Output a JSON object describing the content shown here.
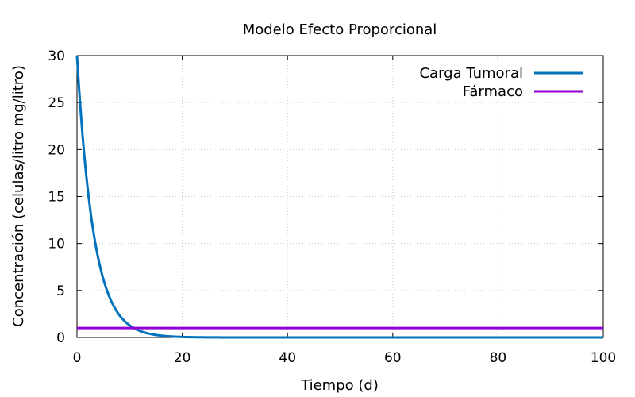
{
  "chart_data": {
    "type": "line",
    "title": "Modelo Efecto Proporcional",
    "xlabel": "Tiempo (d)",
    "ylabel": "Concentración (celulas/litro  mg/litro)",
    "xlim": [
      0,
      100
    ],
    "ylim": [
      0,
      30
    ],
    "x_ticks": [
      0,
      20,
      40,
      60,
      80,
      100
    ],
    "y_ticks": [
      0,
      5,
      10,
      15,
      20,
      25,
      30
    ],
    "grid": true,
    "legend_position": "top-right",
    "series": [
      {
        "name": "Carga Tumoral",
        "color": "#0072bd",
        "x": [
          0,
          1,
          2,
          3,
          4,
          5,
          6,
          7,
          8,
          9,
          10,
          11,
          12,
          14,
          16,
          18,
          20,
          25,
          30,
          40,
          50,
          60,
          70,
          80,
          90,
          100
        ],
        "y": [
          30,
          21.9,
          16.0,
          11.7,
          8.5,
          6.2,
          4.6,
          3.3,
          2.4,
          1.8,
          1.3,
          0.95,
          0.69,
          0.37,
          0.2,
          0.1,
          0.06,
          0.01,
          0.0,
          0.0,
          0.0,
          0.0,
          0.0,
          0.0,
          0.0,
          0.0
        ]
      },
      {
        "name": "Fármaco",
        "color": "#9400d3",
        "x": [
          0,
          100
        ],
        "y": [
          1,
          1
        ]
      }
    ]
  }
}
